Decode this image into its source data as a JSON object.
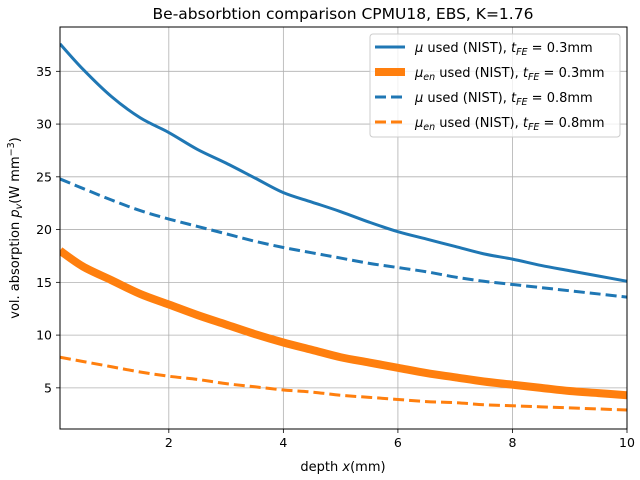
{
  "chart_data": {
    "type": "line",
    "title": "Be-absorbtion comparison CPMU18, EBS, K=1.76",
    "xlabel_main": "depth ",
    "xlabel_var": "x",
    "xlabel_unit": "(mm)",
    "ylabel_main": "vol. absorption ",
    "ylabel_var": "p",
    "ylabel_sub": "v",
    "ylabel_unit_open": "(W mm",
    "ylabel_unit_exp": "−3",
    "ylabel_unit_close": ")",
    "xlim": [
      0.1,
      10
    ],
    "ylim": [
      1.1,
      39.2
    ],
    "xticks": [
      2,
      4,
      6,
      8,
      10
    ],
    "yticks": [
      5,
      10,
      15,
      20,
      25,
      30,
      35
    ],
    "grid": true,
    "legend_position": "top-right",
    "colors": {
      "blue": "#1f77b4",
      "orange": "#ff7f0e",
      "grid": "#b0b0b0"
    },
    "series": [
      {
        "name": "μ used (NIST), t_FE = 0.3mm",
        "legend": {
          "sym": "μ",
          "sym_sub": "",
          "mid": " used (NIST), ",
          "t": "t",
          "t_sub": "FE",
          "eq": " = 0.3mm"
        },
        "color": "#1f77b4",
        "style": "solid",
        "weight": "normal",
        "x": [
          0.1,
          0.5,
          1,
          1.5,
          2,
          2.5,
          3,
          3.5,
          4,
          4.5,
          5,
          5.5,
          6,
          6.5,
          7,
          7.5,
          8,
          8.5,
          9,
          9.5,
          10
        ],
        "values": [
          37.6,
          35.2,
          32.6,
          30.6,
          29.2,
          27.6,
          26.3,
          24.9,
          23.5,
          22.6,
          21.7,
          20.7,
          19.8,
          19.1,
          18.4,
          17.7,
          17.2,
          16.6,
          16.1,
          15.6,
          15.1
        ]
      },
      {
        "name": "μ_en used (NIST), t_FE = 0.3mm",
        "legend": {
          "sym": "μ",
          "sym_sub": "en",
          "mid": " used (NIST), ",
          "t": "t",
          "t_sub": "FE",
          "eq": " = 0.3mm"
        },
        "color": "#ff7f0e",
        "style": "solid",
        "weight": "thick",
        "x": [
          0.1,
          0.5,
          1,
          1.5,
          2,
          2.5,
          3,
          3.5,
          4,
          4.5,
          5,
          5.5,
          6,
          6.5,
          7,
          7.5,
          8,
          8.5,
          9,
          9.5,
          10
        ],
        "values": [
          18.0,
          16.5,
          15.2,
          13.9,
          12.9,
          11.9,
          11.0,
          10.1,
          9.3,
          8.6,
          7.9,
          7.4,
          6.9,
          6.4,
          6.0,
          5.6,
          5.3,
          5.0,
          4.7,
          4.5,
          4.3
        ]
      },
      {
        "name": "μ used (NIST), t_FE = 0.8mm",
        "legend": {
          "sym": "μ",
          "sym_sub": "",
          "mid": " used (NIST), ",
          "t": "t",
          "t_sub": "FE",
          "eq": " = 0.8mm"
        },
        "color": "#1f77b4",
        "style": "dashed",
        "weight": "normal",
        "x": [
          0.1,
          0.5,
          1,
          1.5,
          2,
          2.5,
          3,
          3.5,
          4,
          4.5,
          5,
          5.5,
          6,
          6.5,
          7,
          7.5,
          8,
          8.5,
          9,
          9.5,
          10
        ],
        "values": [
          24.8,
          23.9,
          22.8,
          21.8,
          21.0,
          20.3,
          19.6,
          18.9,
          18.3,
          17.8,
          17.3,
          16.8,
          16.4,
          16.0,
          15.5,
          15.1,
          14.8,
          14.5,
          14.2,
          13.9,
          13.6
        ]
      },
      {
        "name": "μ_en used (NIST), t_FE = 0.8mm",
        "legend": {
          "sym": "μ",
          "sym_sub": "en",
          "mid": " used (NIST), ",
          "t": "t",
          "t_sub": "FE",
          "eq": " = 0.8mm"
        },
        "color": "#ff7f0e",
        "style": "dashed",
        "weight": "normal",
        "x": [
          0.1,
          0.5,
          1,
          1.5,
          2,
          2.5,
          3,
          3.5,
          4,
          4.5,
          5,
          5.5,
          6,
          6.5,
          7,
          7.5,
          8,
          8.5,
          9,
          9.5,
          10
        ],
        "values": [
          7.9,
          7.5,
          7.0,
          6.5,
          6.1,
          5.8,
          5.4,
          5.1,
          4.8,
          4.6,
          4.3,
          4.1,
          3.9,
          3.7,
          3.6,
          3.4,
          3.3,
          3.2,
          3.1,
          3.0,
          2.9
        ]
      }
    ]
  }
}
